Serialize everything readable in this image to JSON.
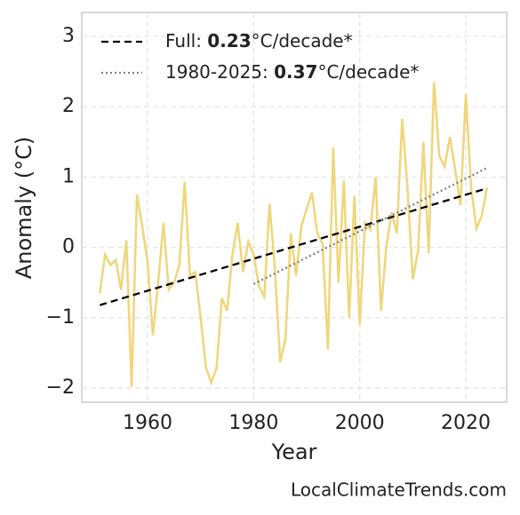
{
  "chart_data": {
    "type": "line",
    "xlabel": "Year",
    "ylabel": "Anomaly (°C)",
    "source": "LocalClimateTrends.com",
    "xlim": [
      1947.6,
      2027.7
    ],
    "xticks": [
      1960,
      1980,
      2000,
      2020
    ],
    "ylim": [
      -2.2,
      3.34
    ],
    "yticks": [
      {
        "value": -2,
        "label": "−2"
      },
      {
        "value": -1,
        "label": "−1"
      },
      0,
      1,
      2,
      3
    ],
    "grid": true,
    "legend": "upper left",
    "x": [
      1951,
      1952,
      1953,
      1954,
      1955,
      1956,
      1957,
      1958,
      1959,
      1960,
      1961,
      1962,
      1963,
      1964,
      1965,
      1966,
      1967,
      1968,
      1969,
      1970,
      1971,
      1972,
      1973,
      1974,
      1975,
      1976,
      1977,
      1978,
      1979,
      1980,
      1981,
      1982,
      1983,
      1984,
      1985,
      1986,
      1987,
      1988,
      1989,
      1990,
      1991,
      1992,
      1993,
      1994,
      1995,
      1996,
      1997,
      1998,
      1999,
      2000,
      2001,
      2002,
      2003,
      2004,
      2005,
      2006,
      2007,
      2008,
      2009,
      2010,
      2011,
      2012,
      2013,
      2014,
      2015,
      2016,
      2017,
      2018,
      2019,
      2020,
      2021,
      2022,
      2023,
      2024
    ],
    "values": [
      -0.65,
      -0.1,
      -0.25,
      -0.18,
      -0.6,
      0.1,
      -1.98,
      0.75,
      0.3,
      -0.2,
      -1.25,
      -0.5,
      0.35,
      -0.6,
      -0.5,
      -0.25,
      0.93,
      -0.4,
      -0.35,
      -1.0,
      -1.7,
      -1.92,
      -1.72,
      -0.72,
      -0.9,
      -0.1,
      0.35,
      -0.35,
      0.08,
      -0.1,
      -0.55,
      -0.7,
      0.62,
      -0.3,
      -1.63,
      -1.3,
      0.2,
      -0.4,
      0.3,
      0.55,
      0.78,
      0.2,
      0.05,
      -1.45,
      1.42,
      -0.5,
      0.95,
      -1.0,
      0.73,
      -1.1,
      0.35,
      0.25,
      1.0,
      -0.9,
      0.0,
      0.5,
      0.2,
      1.83,
      0.85,
      -0.45,
      -0.05,
      1.5,
      -0.08,
      2.35,
      1.3,
      1.15,
      1.57,
      1.1,
      0.6,
      2.18,
      0.85,
      0.27,
      0.45,
      0.85
    ],
    "color": "#f0d67a",
    "series": [
      {
        "name": "Full: 0.23°C/decade*",
        "color": "#000000",
        "dash": "dashed",
        "x": [
          1951,
          2024
        ],
        "values": [
          -0.82,
          0.84
        ]
      },
      {
        "name": "1980-2025: 0.37°C/decade*",
        "color": "#808080",
        "dash": "dotted",
        "x": [
          1980,
          2024
        ],
        "values": [
          -0.52,
          1.13
        ]
      }
    ]
  }
}
